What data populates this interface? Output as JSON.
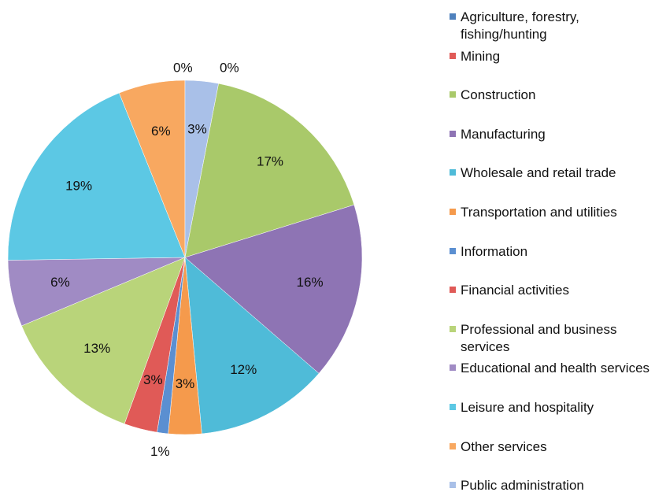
{
  "chart_data": {
    "type": "pie",
    "categories": [
      "Agriculture, forestry, fishing/hunting",
      "Mining",
      "Construction",
      "Manufacturing",
      "Wholesale and retail trade",
      "Transportation and utilities",
      "Information",
      "Financial activities",
      "Professional and business services",
      "Educational and health services",
      "Leisure and hospitality",
      "Other services",
      "Public administration"
    ],
    "values": [
      0,
      0,
      17,
      16,
      12,
      3,
      1,
      3,
      13,
      6,
      19,
      6,
      3
    ],
    "colors": [
      "#4f81bd",
      "#e05a57",
      "#a9c96a",
      "#8e74b4",
      "#4fbbd8",
      "#f59a4c",
      "#5b8fd1",
      "#e05a57",
      "#b9d47a",
      "#a08bc4",
      "#5cc8e4",
      "#f8a860",
      "#a9c0e8"
    ],
    "legend": "right"
  }
}
